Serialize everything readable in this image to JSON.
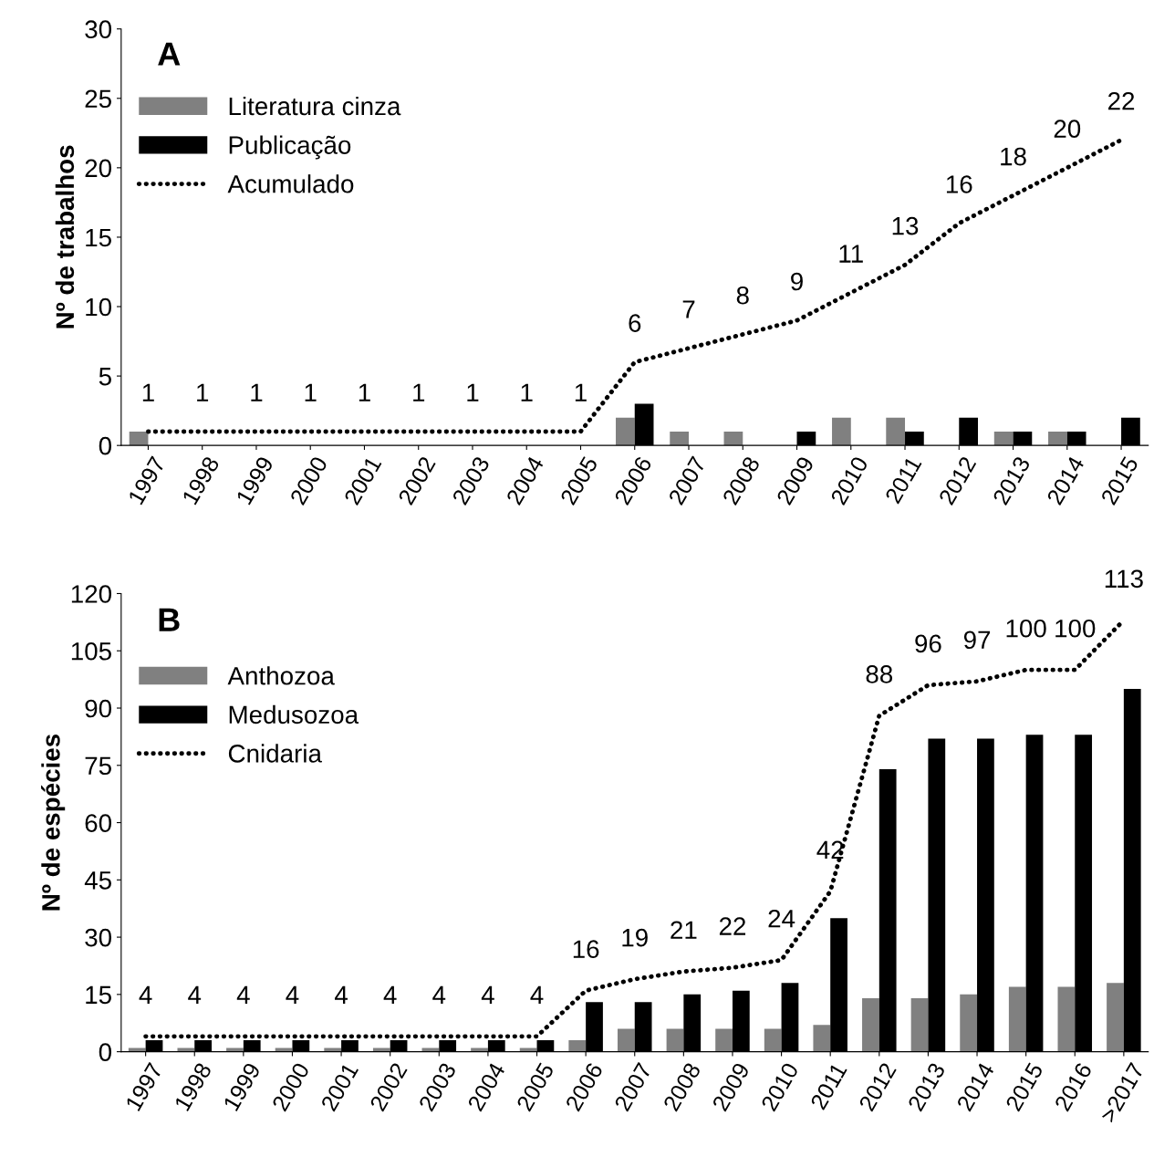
{
  "chart_data": [
    {
      "type": "bar",
      "annotations": [
        "A"
      ],
      "ylabel": "Nº de trabalhos",
      "categories": [
        "1997",
        "1998",
        "1999",
        "2000",
        "2001",
        "2002",
        "2003",
        "2004",
        "2005",
        "2006",
        "2007",
        "2008",
        "2009",
        "2010",
        "2011",
        "2012",
        "2013",
        "2014",
        "2015"
      ],
      "ylim": [
        0,
        30
      ],
      "yticks": [
        0,
        5,
        10,
        15,
        20,
        25,
        30
      ],
      "grid": false,
      "legend": "top left",
      "line_style": "dotted",
      "series": [
        {
          "name": "Literatura cinza",
          "color": "#808080",
          "values": [
            1,
            0,
            0,
            0,
            0,
            0,
            0,
            0,
            0,
            2,
            1,
            1,
            0,
            2,
            2,
            0,
            1,
            1,
            0
          ]
        },
        {
          "name": "Publicação",
          "color": "#000000",
          "values": [
            0,
            0,
            0,
            0,
            0,
            0,
            0,
            0,
            0,
            3,
            0,
            0,
            1,
            0,
            1,
            2,
            1,
            1,
            2
          ]
        },
        {
          "name": "Acumulado",
          "type": "line",
          "color": "#000000",
          "values": [
            1,
            1,
            1,
            1,
            1,
            1,
            1,
            1,
            1,
            6,
            7,
            8,
            9,
            11,
            13,
            16,
            18,
            20,
            22
          ],
          "value_labels": [
            "1",
            "1",
            "1",
            "1",
            "1",
            "1",
            "1",
            "1",
            "1",
            "6",
            "7",
            "8",
            "9",
            "11",
            "13",
            "16",
            "18",
            "20",
            "22"
          ]
        }
      ]
    },
    {
      "type": "bar",
      "annotations": [
        "B"
      ],
      "ylabel": "Nº de espécies",
      "categories": [
        "1997",
        "1998",
        "1999",
        "2000",
        "2001",
        "2002",
        "2003",
        "2004",
        "2005",
        "2006",
        "2007",
        "2008",
        "2009",
        "2010",
        "2011",
        "2012",
        "2013",
        "2014",
        "2015",
        "2016",
        ">2017"
      ],
      "ylim": [
        0,
        120
      ],
      "yticks": [
        0,
        15,
        30,
        45,
        60,
        75,
        90,
        105,
        120
      ],
      "grid": false,
      "legend": "top left",
      "line_style": "dotted",
      "series": [
        {
          "name": "Anthozoa",
          "color": "#808080",
          "values": [
            1,
            1,
            1,
            1,
            1,
            1,
            1,
            1,
            1,
            3,
            6,
            6,
            6,
            6,
            7,
            14,
            14,
            15,
            17,
            17,
            18
          ]
        },
        {
          "name": "Medusozoa",
          "color": "#000000",
          "values": [
            3,
            3,
            3,
            3,
            3,
            3,
            3,
            3,
            3,
            13,
            13,
            15,
            16,
            18,
            35,
            74,
            82,
            82,
            83,
            83,
            95
          ]
        },
        {
          "name": "Cnidaria",
          "type": "line",
          "color": "#000000",
          "values": [
            4,
            4,
            4,
            4,
            4,
            4,
            4,
            4,
            4,
            16,
            19,
            21,
            22,
            24,
            42,
            88,
            96,
            97,
            100,
            100,
            113
          ],
          "value_labels": [
            "4",
            "4",
            "4",
            "4",
            "4",
            "4",
            "4",
            "4",
            "4",
            "16",
            "19",
            "21",
            "22",
            "24",
            "42",
            "88",
            "96",
            "97",
            "100",
            "100",
            "113"
          ]
        }
      ]
    }
  ]
}
